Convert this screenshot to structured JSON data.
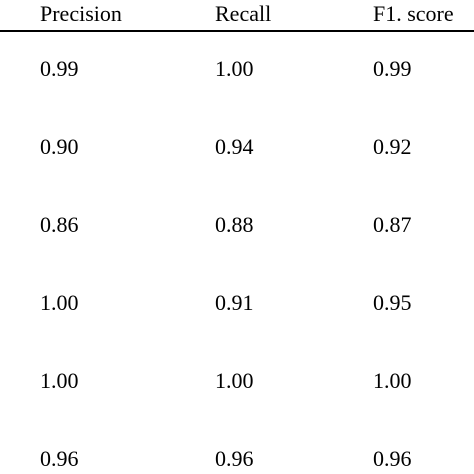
{
  "table": {
    "headers": [
      "Precision",
      "Recall",
      "F1. score"
    ],
    "rows": [
      [
        "0.99",
        "1.00",
        "0.99"
      ],
      [
        "0.90",
        "0.94",
        "0.92"
      ],
      [
        "0.86",
        "0.88",
        "0.87"
      ],
      [
        "1.00",
        "0.91",
        "0.95"
      ],
      [
        "1.00",
        "1.00",
        "1.00"
      ],
      [
        "0.96",
        "0.96",
        "0.96"
      ]
    ]
  }
}
